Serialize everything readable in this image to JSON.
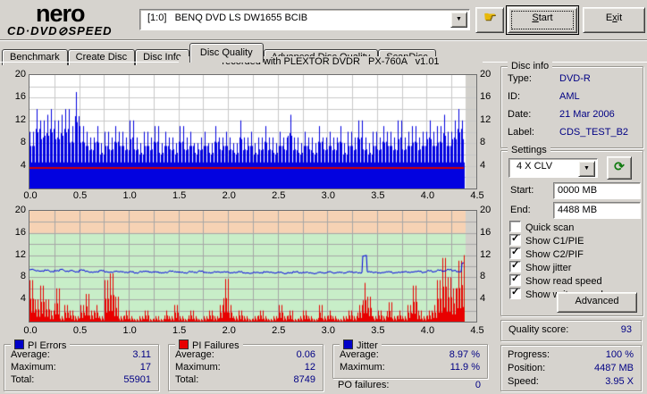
{
  "header": {
    "logo_line1": "nero",
    "logo_line2": "CD·DVD⊘SPEED",
    "drive_selector_value": "[1:0]   BENQ DVD LS DW1655 BCIB",
    "start_label": "Start",
    "exit_label": "Exit"
  },
  "tabs": [
    {
      "label": "Benchmark",
      "active": false
    },
    {
      "label": "Create Disc",
      "active": false
    },
    {
      "label": "Disc Info",
      "active": false
    },
    {
      "label": "Disc Quality",
      "active": true
    },
    {
      "label": "Advanced Disc Quality",
      "active": false
    },
    {
      "label": "ScanDisc",
      "active": false
    }
  ],
  "chart_title": "recorded with PLEXTOR DVDR   PX-760A   v1.01",
  "chart_data": [
    {
      "type": "area",
      "name": "PI Errors scan",
      "color": "#0202e0",
      "title": "recorded with PLEXTOR DVDR   PX-760A   v1.01",
      "x_ticks": [
        "0.0",
        "0.5",
        "1.0",
        "1.5",
        "2.0",
        "2.5",
        "3.0",
        "3.5",
        "4.0",
        "4.5"
      ],
      "y_ticks": [
        20,
        16,
        12,
        8,
        4
      ],
      "x_range": [
        0,
        4.5
      ],
      "y_range": [
        0,
        20
      ],
      "x_unit": "GB",
      "grid": true,
      "x_step_gb": 0.05,
      "data_end_gb": 4.37,
      "average_marker_line": 3.6,
      "average_marker_color": "#d40000",
      "values": [
        10,
        14,
        12,
        13,
        14,
        12,
        13,
        14,
        11,
        17,
        11,
        10,
        9,
        11,
        8,
        10,
        9,
        11,
        10,
        9,
        12,
        9,
        8,
        10,
        9,
        11,
        8,
        10,
        9,
        8,
        11,
        9,
        10,
        8,
        9,
        10,
        8,
        11,
        9,
        10,
        9,
        8,
        12,
        9,
        10,
        8,
        9,
        11,
        9,
        8,
        10,
        9,
        13,
        9,
        8,
        10,
        9,
        8,
        11,
        9,
        10,
        9,
        11,
        8,
        10,
        9,
        12,
        9,
        8,
        10,
        9,
        11,
        10,
        9,
        12,
        9,
        10,
        11,
        9,
        10,
        12,
        10,
        11,
        13,
        10,
        12,
        14,
        12
      ]
    },
    {
      "type": "bar",
      "name": "PI Failures / Jitter scan",
      "x_ticks": [
        "0.0",
        "0.5",
        "1.0",
        "1.5",
        "2.0",
        "2.5",
        "3.0",
        "3.5",
        "4.0",
        "4.5"
      ],
      "y_ticks": [
        20,
        16,
        12,
        8,
        4
      ],
      "x_range": [
        0,
        4.5
      ],
      "y_range": [
        0,
        20
      ],
      "x_unit": "GB",
      "grid": true,
      "x_step_gb": 0.05,
      "data_end_gb": 4.37,
      "bands": [
        {
          "from": 0,
          "to": 16,
          "color": "#c8eec8"
        },
        {
          "from": 16,
          "to": 20,
          "color": "#f6d2b4"
        }
      ],
      "series": [
        {
          "name": "PI Failures",
          "type": "bar",
          "color": "#e80000",
          "values": [
            7.5,
            4,
            6.5,
            4,
            2,
            6,
            1,
            3,
            2,
            1,
            3,
            5,
            2,
            3,
            1,
            7.5,
            8.7,
            4.5,
            1,
            2,
            1,
            0.5,
            1,
            2,
            0.5,
            1,
            0.5,
            2,
            1,
            3,
            1,
            0.5,
            2,
            1,
            0.5,
            1,
            2,
            1,
            3,
            7.7,
            3,
            1,
            2,
            1,
            0.5,
            1,
            2,
            1,
            0.5,
            1,
            3,
            1,
            2,
            0.5,
            1,
            2,
            1,
            0.5,
            3,
            1,
            2,
            1,
            0.5,
            1,
            2,
            1,
            3,
            7,
            4.5,
            1,
            2,
            1,
            3.5,
            1,
            2,
            1,
            3,
            6.5,
            2,
            1,
            2,
            3,
            7.5,
            11.5,
            8,
            6,
            11,
            12
          ]
        },
        {
          "name": "Jitter",
          "type": "line",
          "color": "#0202e0",
          "values": [
            9.4,
            9.2,
            9.1,
            9.3,
            9.0,
            9.2,
            9.4,
            9.1,
            9.2,
            9.0,
            9.3,
            9.1,
            8.9,
            9.0,
            9.2,
            9.0,
            8.9,
            9.1,
            9.0,
            8.9,
            9.0,
            8.8,
            9.0,
            9.1,
            8.9,
            9.0,
            8.8,
            8.9,
            9.1,
            9.0,
            8.9,
            8.8,
            9.0,
            8.9,
            9.1,
            8.9,
            8.8,
            9.0,
            8.9,
            9.0,
            8.8,
            8.9,
            9.0,
            8.8,
            8.7,
            8.9,
            8.8,
            9.0,
            8.9,
            8.8,
            8.9,
            8.7,
            8.8,
            9.0,
            8.8,
            8.9,
            8.8,
            8.7,
            8.9,
            8.8,
            9.0,
            8.8,
            8.9,
            8.8,
            9.0,
            8.9,
            8.8,
            11.9,
            9.0,
            8.9,
            8.8,
            8.9,
            9.0,
            8.8,
            8.9,
            9.0,
            8.9,
            9.0,
            9.1,
            8.9,
            9.2,
            9.0,
            9.3,
            9.1,
            9.4,
            9.2,
            9.0,
            10.6
          ]
        }
      ]
    }
  ],
  "disc_info": {
    "title": "Disc info",
    "rows": [
      {
        "label": "Type:",
        "value": "DVD-R"
      },
      {
        "label": "ID:",
        "value": "AML"
      },
      {
        "label": "Date:",
        "value": "21 Mar 2006"
      },
      {
        "label": "Label:",
        "value": "CDS_TEST_B2"
      }
    ]
  },
  "settings": {
    "title": "Settings",
    "speed_select_value": "4 X CLV",
    "start": {
      "label": "Start:",
      "value": "0000 MB"
    },
    "end": {
      "label": "End:",
      "value": "4488 MB"
    },
    "checkboxes": [
      {
        "label": "Quick scan",
        "checked": false
      },
      {
        "label": "Show C1/PIE",
        "checked": true
      },
      {
        "label": "Show C2/PIF",
        "checked": true
      },
      {
        "label": "Show jitter",
        "checked": true
      },
      {
        "label": "Show read speed",
        "checked": true
      },
      {
        "label": "Show write speed",
        "checked": true
      }
    ],
    "advanced_label": "Advanced"
  },
  "quality": {
    "label": "Quality score:",
    "value": "93"
  },
  "stats": {
    "pi_errors": {
      "title": "PI Errors",
      "swatch_color": "#0000c8",
      "rows": [
        {
          "label": "Average:",
          "value": "3.11"
        },
        {
          "label": "Maximum:",
          "value": "17"
        },
        {
          "label": "Total:",
          "value": "55901"
        }
      ]
    },
    "pi_failures": {
      "title": "PI Failures",
      "swatch_color": "#e80000",
      "rows": [
        {
          "label": "Average:",
          "value": "0.06"
        },
        {
          "label": "Maximum:",
          "value": "12"
        },
        {
          "label": "Total:",
          "value": "8749"
        }
      ]
    },
    "jitter": {
      "title": "Jitter",
      "swatch_color": "#0000c8",
      "rows": [
        {
          "label": "Average:",
          "value": "8.97 %"
        },
        {
          "label": "Maximum:",
          "value": "11.9 %"
        }
      ]
    },
    "po_failures": {
      "label": "PO failures:",
      "value": "0"
    },
    "progress": {
      "rows": [
        {
          "label": "Progress:",
          "value": "100 %"
        },
        {
          "label": "Position:",
          "value": "4487 MB"
        },
        {
          "label": "Speed:",
          "value": "3.95 X"
        }
      ]
    }
  }
}
